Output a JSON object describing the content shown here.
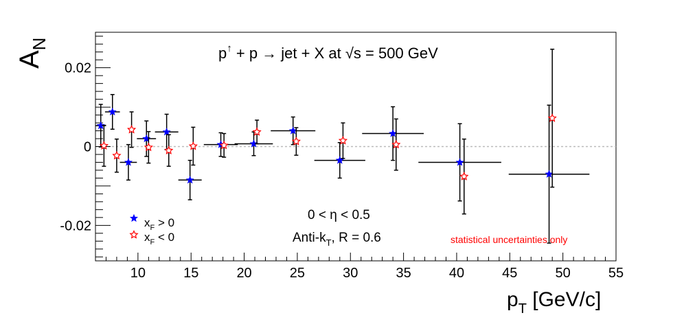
{
  "chart_data": {
    "type": "scatter",
    "title_main": "p",
    "title_sup": "↑",
    "title_rest": " + p → jet + X at  √s = 500 GeV",
    "xlabel_main": "p",
    "xlabel_sub": "T",
    "xlabel_rest": " [GeV/c]",
    "ylabel_main": "A",
    "ylabel_sub": "N",
    "eta_label": "0 < η < 0.5",
    "algo_main": "Anti-k",
    "algo_sub": "T",
    "algo_rest": ", R = 0.6",
    "note": "statistical uncertainties only",
    "note_color": "#ff0000",
    "xlim": [
      6,
      55
    ],
    "ylim": [
      -0.029,
      0.029
    ],
    "x_ticks": [
      10,
      15,
      20,
      25,
      30,
      35,
      40,
      45,
      50,
      55
    ],
    "x_tick_labels": [
      "10",
      "15",
      "20",
      "25",
      "30",
      "35",
      "40",
      "45",
      "50",
      "55"
    ],
    "y_ticks": [
      -0.02,
      0,
      0.02
    ],
    "y_tick_labels": [
      "-0.02",
      "0",
      "0.02"
    ],
    "reference_line": 0,
    "legend": [
      {
        "label_main": "x",
        "label_sub": "F",
        "label_rest": " > 0",
        "marker": "filled-star",
        "color": "#0000ff"
      },
      {
        "label_main": "x",
        "label_sub": "F",
        "label_rest": " < 0",
        "marker": "open-star",
        "color": "#ff0000"
      }
    ],
    "series": [
      {
        "name": "x_F > 0",
        "marker": "filled-star",
        "color": "#0000ff",
        "points": [
          {
            "x": 6.5,
            "y": 0.0053,
            "xerr": 0.5,
            "yerr": 0.0054
          },
          {
            "x": 7.6,
            "y": 0.0088,
            "xerr": 0.7,
            "yerr": 0.0044
          },
          {
            "x": 9.1,
            "y": -0.004,
            "xerr": 0.8,
            "yerr": 0.0045
          },
          {
            "x": 10.8,
            "y": 0.002,
            "xerr": 0.9,
            "yerr": 0.0045
          },
          {
            "x": 12.7,
            "y": 0.0037,
            "xerr": 1.1,
            "yerr": 0.0045
          },
          {
            "x": 14.9,
            "y": -0.0085,
            "xerr": 1.1,
            "yerr": 0.005
          },
          {
            "x": 17.8,
            "y": 0.0005,
            "xerr": 1.6,
            "yerr": 0.003
          },
          {
            "x": 20.9,
            "y": 0.0007,
            "xerr": 1.8,
            "yerr": 0.003
          },
          {
            "x": 24.6,
            "y": 0.004,
            "xerr": 2.1,
            "yerr": 0.0035
          },
          {
            "x": 29.0,
            "y": -0.0035,
            "xerr": 2.4,
            "yerr": 0.0045
          },
          {
            "x": 34.0,
            "y": 0.0033,
            "xerr": 2.9,
            "yerr": 0.0068
          },
          {
            "x": 40.3,
            "y": -0.004,
            "xerr": 3.9,
            "yerr": 0.0098
          },
          {
            "x": 48.7,
            "y": -0.007,
            "xerr": 3.8,
            "yerr": 0.0175
          }
        ]
      },
      {
        "name": "x_F < 0",
        "marker": "open-star",
        "color": "#ff0000",
        "points": [
          {
            "x": 6.8,
            "y": 0.0002,
            "yerr": 0.0052
          },
          {
            "x": 8.0,
            "y": -0.0023,
            "yerr": 0.0042
          },
          {
            "x": 9.4,
            "y": 0.0043,
            "yerr": 0.0045
          },
          {
            "x": 11.0,
            "y": -0.0002,
            "yerr": 0.004
          },
          {
            "x": 12.9,
            "y": -0.001,
            "yerr": 0.004
          },
          {
            "x": 15.2,
            "y": 0.0001,
            "yerr": 0.0048
          },
          {
            "x": 18.1,
            "y": 0.0003,
            "yerr": 0.003
          },
          {
            "x": 21.2,
            "y": 0.0037,
            "yerr": 0.003
          },
          {
            "x": 24.9,
            "y": 0.0013,
            "yerr": 0.0035
          },
          {
            "x": 29.3,
            "y": 0.0015,
            "yerr": 0.0045
          },
          {
            "x": 34.3,
            "y": 0.0005,
            "yerr": 0.0065
          },
          {
            "x": 40.7,
            "y": -0.0076,
            "yerr": 0.0095
          },
          {
            "x": 49.0,
            "y": 0.0072,
            "yerr": 0.0175
          }
        ]
      }
    ]
  }
}
